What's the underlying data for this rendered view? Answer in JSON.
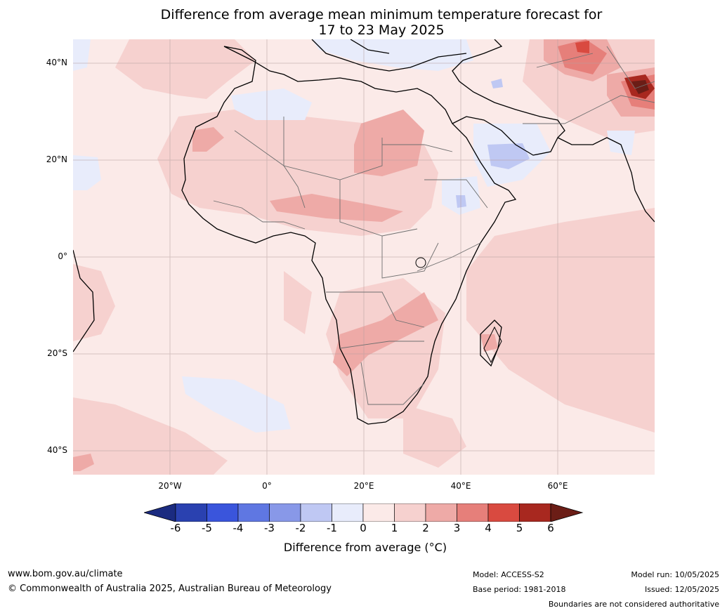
{
  "title": {
    "line1": "Difference from average mean minimum temperature forecast for",
    "line2": "17 to 23 May 2025"
  },
  "map": {
    "lat_labels": [
      "40°N",
      "20°N",
      "0°",
      "20°S",
      "40°S"
    ],
    "lon_labels": [
      "20°W",
      "0°",
      "20°E",
      "40°E",
      "60°E"
    ]
  },
  "colorbar": {
    "ticks": [
      "-6",
      "-5",
      "-4",
      "-3",
      "-2",
      "-1",
      "0",
      "1",
      "2",
      "3",
      "4",
      "5",
      "6"
    ],
    "colors": [
      "#1b2b80",
      "#2a41b0",
      "#3a55dc",
      "#5f77e2",
      "#8898e8",
      "#bfc8f3",
      "#e8ecfb",
      "#fbeae8",
      "#f6d1cf",
      "#eeaaa7",
      "#e67f7a",
      "#d94a40",
      "#a8281f",
      "#6b1d16"
    ],
    "label": "Difference from average (°C)"
  },
  "footer": {
    "website": "www.bom.gov.au/climate",
    "copyright": "© Commonwealth of Australia 2025, Australian Bureau of Meteorology",
    "model": "Model: ACCESS-S2",
    "base_period": "Base period: 1981-2018",
    "model_run": "Model run: 10/05/2025",
    "issued": "Issued: 12/05/2025",
    "disclaimer": "Boundaries are not considered authoritative"
  }
}
